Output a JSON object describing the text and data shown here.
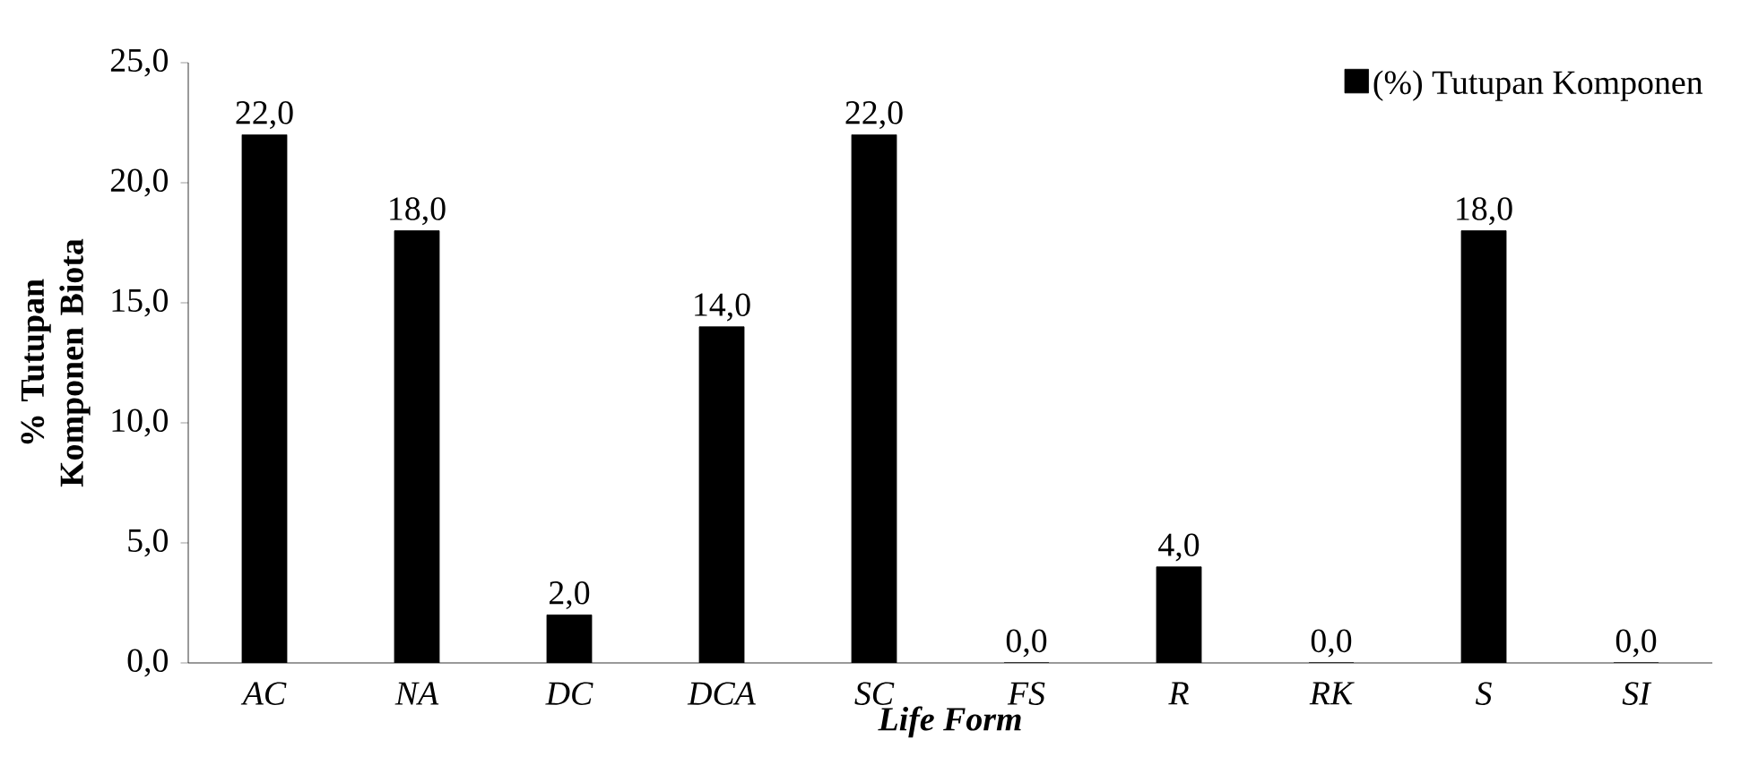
{
  "chart_data": {
    "type": "bar",
    "ylabel": "% Tutupan Komponen Biota",
    "xlabel": "Life Form",
    "categories": [
      "AC",
      "NA",
      "DC",
      "DCA",
      "SC",
      "FS",
      "R",
      "RK",
      "S",
      "SI"
    ],
    "series": [
      {
        "name": "(%) Tutupan Komponen",
        "color": "#000000",
        "values": [
          22,
          18,
          2,
          14,
          22,
          0,
          4,
          0,
          18,
          0
        ],
        "value_labels": [
          "22,0",
          "18,0",
          "2,0",
          "14,0",
          "22,0",
          "0,0",
          "4,0",
          "0,0",
          "18,0",
          "0,0"
        ]
      }
    ],
    "ylim": [
      0,
      25
    ],
    "yticks": [
      {
        "value": 0,
        "label": "0,0"
      },
      {
        "value": 5,
        "label": "5,0"
      },
      {
        "value": 10,
        "label": "10,0"
      },
      {
        "value": 15,
        "label": "15,0"
      },
      {
        "value": 20,
        "label": "20,0"
      },
      {
        "value": 25,
        "label": "25,0"
      }
    ],
    "legend": "top right",
    "grid": false
  }
}
